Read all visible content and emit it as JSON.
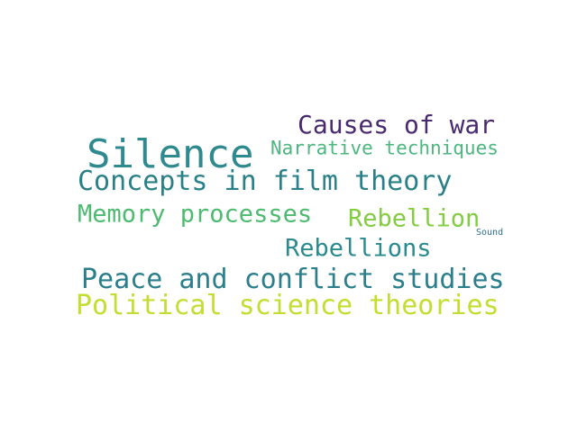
{
  "words": [
    {
      "id": "silence",
      "text": "Silence",
      "color": "#2e8a8f"
    },
    {
      "id": "causes",
      "text": "Causes of war",
      "color": "#482a6e"
    },
    {
      "id": "narrative",
      "text": "Narrative techniques",
      "color": "#4cb77e"
    },
    {
      "id": "film",
      "text": "Concepts in film theory",
      "color": "#2a8088"
    },
    {
      "id": "memory",
      "text": "Memory processes",
      "color": "#4dbb6f"
    },
    {
      "id": "rebellion",
      "text": "Rebellion",
      "color": "#82cd40"
    },
    {
      "id": "sound",
      "text": "Sound",
      "color": "#2c6f8a"
    },
    {
      "id": "rebellions",
      "text": "Rebellions",
      "color": "#2a8a8e"
    },
    {
      "id": "peace",
      "text": "Peace and conflict studies",
      "color": "#2b7f8c"
    },
    {
      "id": "political",
      "text": "Political science theories",
      "color": "#c4dd30"
    }
  ]
}
